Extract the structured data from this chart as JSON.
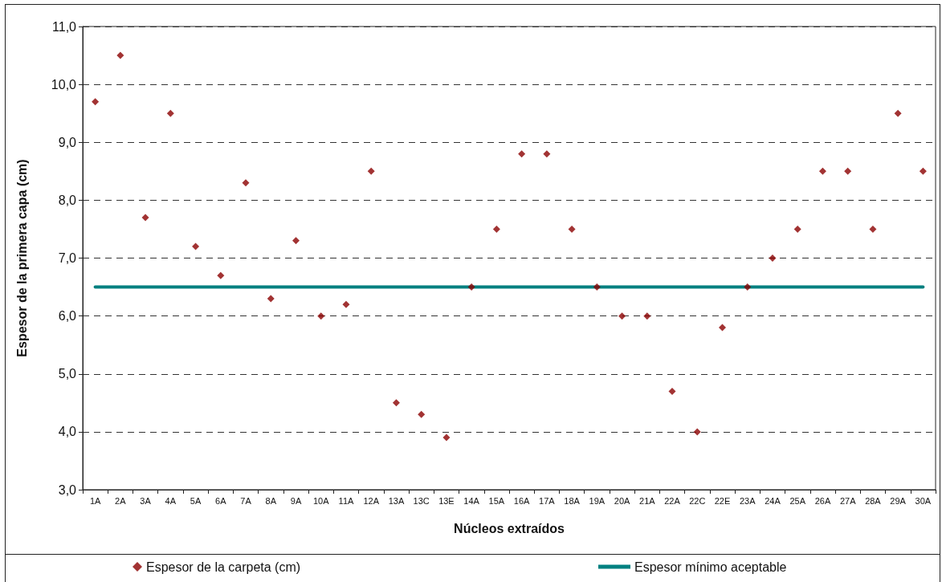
{
  "chart_data": {
    "type": "scatter",
    "xlabel": "Núcleos extraídos",
    "ylabel": "Espesor de la primera capa (cm)",
    "categories": [
      "1A",
      "2A",
      "3A",
      "4A",
      "5A",
      "6A",
      "7A",
      "8A",
      "9A",
      "10A",
      "11A",
      "12A",
      "13A",
      "13C",
      "13E",
      "14A",
      "15A",
      "16A",
      "17A",
      "18A",
      "19A",
      "20A",
      "21A",
      "22A",
      "22C",
      "22E",
      "23A",
      "24A",
      "25A",
      "26A",
      "27A",
      "28A",
      "29A",
      "30A"
    ],
    "series": [
      {
        "name": "Espesor de la carpeta (cm)",
        "marker": "diamond",
        "color": "#8b0000",
        "values": [
          9.7,
          10.5,
          7.7,
          9.5,
          7.2,
          6.7,
          8.3,
          6.3,
          7.3,
          6.0,
          6.2,
          8.5,
          4.5,
          4.3,
          3.9,
          6.5,
          7.5,
          8.8,
          8.8,
          7.5,
          6.5,
          6.0,
          6.0,
          4.7,
          4.0,
          5.8,
          6.5,
          7.0,
          7.5,
          8.5,
          8.5,
          7.5,
          9.5,
          8.5
        ]
      },
      {
        "name": "Espesor mínimo aceptable",
        "type": "line",
        "marker": "none",
        "color": "#008080",
        "values": [
          6.5,
          6.5,
          6.5,
          6.5,
          6.5,
          6.5,
          6.5,
          6.5,
          6.5,
          6.5,
          6.5,
          6.5,
          6.5,
          6.5,
          6.5,
          6.5,
          6.5,
          6.5,
          6.5,
          6.5,
          6.5,
          6.5,
          6.5,
          6.5,
          6.5,
          6.5,
          6.5,
          6.5,
          6.5,
          6.5,
          6.5,
          6.5,
          6.5,
          6.5
        ]
      }
    ],
    "ylim": [
      3,
      11
    ],
    "yticks": [
      {
        "value": 3,
        "label": "3,0"
      },
      {
        "value": 4,
        "label": "4,0"
      },
      {
        "value": 5,
        "label": "5,0"
      },
      {
        "value": 6,
        "label": "6,0"
      },
      {
        "value": 7,
        "label": "7,0"
      },
      {
        "value": 8,
        "label": "8,0"
      },
      {
        "value": 9,
        "label": "9,0"
      },
      {
        "value": 10,
        "label": "10,0"
      },
      {
        "value": 11,
        "label": "11,0"
      }
    ],
    "grid": "y",
    "legend": "bottom"
  }
}
